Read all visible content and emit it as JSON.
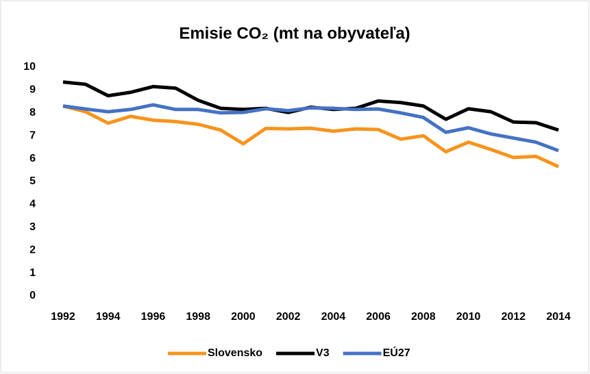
{
  "chart_data": {
    "type": "line",
    "title": "Emisie CO₂ (mt na obyvateľa)",
    "x": [
      1992,
      1993,
      1994,
      1995,
      1996,
      1997,
      1998,
      1999,
      2000,
      2001,
      2002,
      2003,
      2004,
      2005,
      2006,
      2007,
      2008,
      2009,
      2010,
      2011,
      2012,
      2013,
      2014
    ],
    "xlim": [
      1992,
      2014
    ],
    "xticks": [
      1992,
      1994,
      1996,
      1998,
      2000,
      2002,
      2004,
      2006,
      2008,
      2010,
      2012,
      2014
    ],
    "ylim": [
      0,
      10
    ],
    "yticks": [
      0,
      1,
      2,
      3,
      4,
      5,
      6,
      7,
      8,
      9,
      10
    ],
    "grid": false,
    "legend": "bottom",
    "series": [
      {
        "name": "Slovensko",
        "color": "#f7941d",
        "values": [
          8.3,
          8.05,
          7.55,
          7.85,
          7.68,
          7.62,
          7.5,
          7.25,
          6.65,
          7.32,
          7.3,
          7.33,
          7.2,
          7.3,
          7.27,
          6.85,
          7.0,
          6.3,
          6.72,
          6.4,
          6.05,
          6.1,
          5.65
        ]
      },
      {
        "name": "V3",
        "color": "#000000",
        "values": [
          9.35,
          9.25,
          8.75,
          8.9,
          9.15,
          9.08,
          8.55,
          8.2,
          8.15,
          8.2,
          8.02,
          8.25,
          8.15,
          8.2,
          8.52,
          8.45,
          8.3,
          7.72,
          8.18,
          8.05,
          7.6,
          7.57,
          7.25
        ]
      },
      {
        "name": "EÚ27",
        "color": "#4472c4",
        "values": [
          8.3,
          8.17,
          8.05,
          8.15,
          8.35,
          8.15,
          8.15,
          8.0,
          8.02,
          8.18,
          8.1,
          8.22,
          8.2,
          8.15,
          8.17,
          8.0,
          7.8,
          7.15,
          7.35,
          7.08,
          6.9,
          6.72,
          6.35
        ]
      }
    ]
  }
}
